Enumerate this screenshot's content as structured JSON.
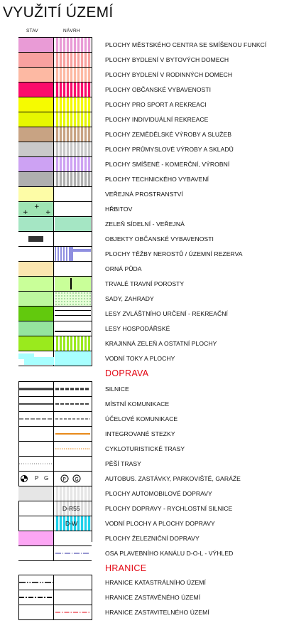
{
  "title": "VYUŽITÍ ÚZEMÍ",
  "columns": {
    "stav": "STAV",
    "navrh": "NÁVRH"
  },
  "land_use": [
    {
      "label": "PLOCHY MĚSTSKÉHO CENTRA SE SMÍŠENOU FUNKCÍ",
      "color": "#e99bd6"
    },
    {
      "label": "PLOCHY BYDLENÍ V BYTOVÝCH DOMECH",
      "color": "#f8a19f"
    },
    {
      "label": "PLOCHY BYDLENÍ V RODINNÝCH DOMECH",
      "color": "#fdb9a3"
    },
    {
      "label": "PLOCHY OBČANSKÉ VYBAVENOSTI",
      "color": "#fb0a6b"
    },
    {
      "label": "PLOCHY PRO SPORT A REKREACI",
      "color": "#f6fb00"
    },
    {
      "label": "PLOCHY INDIVIDUÁLNÍ REKREACE",
      "color": "#e7f700"
    },
    {
      "label": "PLOCHY ZEMĚDĚLSKÉ VÝROBY A SLUŽEB",
      "color": "#c8a383"
    },
    {
      "label": "PLOCHY PRŮMYSLOVÉ VÝROBY A SKLADŮ",
      "color": "#c9c9c9"
    },
    {
      "label": "PLOCHY SMÍŠENÉ - KOMERČNÍ, VÝROBNÍ",
      "color": "#cda2f3"
    },
    {
      "label": "PLOCHY TECHNICKÉHO VYBAVENÍ",
      "color": "#afafaf"
    },
    {
      "label": "VEŘEJNÁ PROSTRANSTVÍ",
      "color": "#fdfca6"
    },
    {
      "label": "HŘBITOV",
      "color": "#9fe3b3"
    },
    {
      "label": "ZELEŇ SÍDELNÍ - VEŘEJNÁ",
      "color": "#a5e6c4"
    },
    {
      "label": "OBJEKTY OBČANSKÉ VYBAVENOSTI",
      "color": "#ffffff"
    },
    {
      "label": "PLOCHY TĚŽBY NEROSTŮ / ÚZEMNÍ REZERVA",
      "color": "#ffffff"
    },
    {
      "label": "ORNÁ PŮDA",
      "color": "#fbe6b0"
    },
    {
      "label": "TRVALÉ TRAVNÍ POROSTY",
      "color": "#c9ff99"
    },
    {
      "label": "SADY, ZAHRADY",
      "color": "#bdf79f"
    },
    {
      "label": "LESY ZVLÁŠTNÍHO URČENÍ - REKREAČNÍ",
      "color": "#62c90d"
    },
    {
      "label": "LESY HOSPODÁŘSKÉ",
      "color": "#95e49f"
    },
    {
      "label": "KRAJINNÁ ZELEŇ A OSTATNÍ PLOCHY",
      "color": "#9aea1d"
    },
    {
      "label": "VODNÍ TOKY A PLOCHY",
      "color": "#a8ffff"
    }
  ],
  "doprava": {
    "heading": "DOPRAVA",
    "items": [
      {
        "label": "SILNICE"
      },
      {
        "label": "MÍSTNÍ KOMUNIKACE"
      },
      {
        "label": "ÚČELOVÉ KOMUNIKACE"
      },
      {
        "label": "INTEGROVANÉ STEZKY"
      },
      {
        "label": "CYKLOTURISTICKÉ TRASY"
      },
      {
        "label": "PĚŠÍ TRASY"
      },
      {
        "label": "AUTOBUS. ZASTÁVKY, PARKOVIŠTĚ, GARÁŽE",
        "symbols_stav": [
          "P",
          "G"
        ]
      },
      {
        "label": "PLOCHY AUTOMOBILOVÉ DOPRAVY"
      },
      {
        "label": "PLOCHY DOPRAVY - RYCHLOSTNÍ SILNICE",
        "code": "D-R55"
      },
      {
        "label": "VODNÍ PLOCHY A PLOCHY DOPRAVY",
        "code": "D-W"
      },
      {
        "label": "PLOCHY ŽELEZNIČNÍ DOPRAVY"
      },
      {
        "label": "OSA PLAVEBNÍHO KANÁLU D-O-L - VÝHLED"
      }
    ]
  },
  "hranice": {
    "heading": "HRANICE",
    "items": [
      {
        "label": "HRANICE KATASTRÁLNÍHO ÚZEMÍ"
      },
      {
        "label": "HRANICE ZASTAVĚNÉHO ÚZEMÍ"
      },
      {
        "label": "HRANICE ZASTAVITELNÉHO ÚZEMÍ"
      }
    ]
  },
  "colors": {
    "accent_red": "#e30613",
    "orange": "#e88a1b",
    "blue_line": "#2c2ca0",
    "water_cyan": "#1fd0ea",
    "rail_pink": "#fca6f4"
  }
}
